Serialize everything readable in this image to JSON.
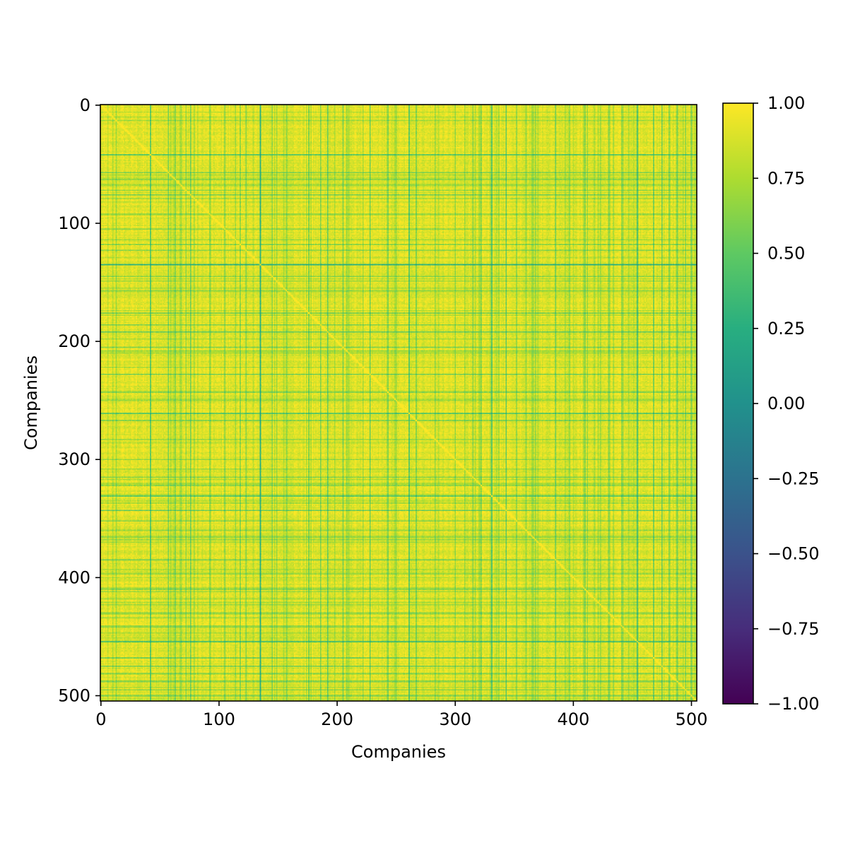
{
  "chart_data": {
    "type": "heatmap",
    "title": "",
    "xlabel": "Companies",
    "ylabel": "Companies",
    "n": 505,
    "xlim": [
      0,
      505
    ],
    "ylim": [
      505,
      0
    ],
    "x_ticks": [
      0,
      100,
      200,
      300,
      400,
      500
    ],
    "y_ticks": [
      0,
      100,
      200,
      300,
      400,
      500
    ],
    "x_tick_labels": [
      "0",
      "100",
      "200",
      "300",
      "400",
      "500"
    ],
    "y_tick_labels": [
      "0",
      "100",
      "200",
      "300",
      "400",
      "500"
    ],
    "colormap": "viridis",
    "color_range": [
      -1.0,
      1.0
    ],
    "colorbar_ticks": [
      1.0,
      0.75,
      0.5,
      0.25,
      0.0,
      -0.25,
      -0.5,
      -0.75,
      -1.0
    ],
    "colorbar_tick_labels": [
      "1.00",
      "0.75",
      "0.50",
      "0.25",
      "0.00",
      "−0.25",
      "−0.50",
      "−0.75",
      "−1.00"
    ],
    "diagonal_value": 1.0,
    "typical_value": 0.85,
    "low_correlation_companies": [
      {
        "index": 42,
        "value": 0.3
      },
      {
        "index": 57,
        "value": 0.4
      },
      {
        "index": 63,
        "value": 0.45
      },
      {
        "index": 72,
        "value": 0.5
      },
      {
        "index": 76,
        "value": 0.35
      },
      {
        "index": 92,
        "value": 0.5
      },
      {
        "index": 105,
        "value": 0.45
      },
      {
        "index": 118,
        "value": 0.5
      },
      {
        "index": 123,
        "value": 0.45
      },
      {
        "index": 135,
        "value": 0.1
      },
      {
        "index": 145,
        "value": 0.45
      },
      {
        "index": 157,
        "value": 0.5
      },
      {
        "index": 176,
        "value": 0.45
      },
      {
        "index": 186,
        "value": 0.4
      },
      {
        "index": 192,
        "value": 0.3
      },
      {
        "index": 205,
        "value": 0.45
      },
      {
        "index": 228,
        "value": 0.35
      },
      {
        "index": 243,
        "value": 0.45
      },
      {
        "index": 261,
        "value": 0.3
      },
      {
        "index": 267,
        "value": 0.45
      },
      {
        "index": 283,
        "value": 0.5
      },
      {
        "index": 300,
        "value": 0.5
      },
      {
        "index": 315,
        "value": 0.45
      },
      {
        "index": 322,
        "value": 0.5
      },
      {
        "index": 331,
        "value": 0.3
      },
      {
        "index": 343,
        "value": 0.3
      },
      {
        "index": 352,
        "value": 0.45
      },
      {
        "index": 368,
        "value": 0.5
      },
      {
        "index": 385,
        "value": 0.35
      },
      {
        "index": 397,
        "value": 0.5
      },
      {
        "index": 410,
        "value": 0.5
      },
      {
        "index": 430,
        "value": 0.45
      },
      {
        "index": 441,
        "value": 0.5
      },
      {
        "index": 454,
        "value": 0.15
      },
      {
        "index": 468,
        "value": 0.4
      },
      {
        "index": 475,
        "value": 0.35
      },
      {
        "index": 481,
        "value": 0.45
      },
      {
        "index": 488,
        "value": 0.4
      },
      {
        "index": 495,
        "value": 0.45
      },
      {
        "index": 500,
        "value": 0.4
      }
    ]
  }
}
